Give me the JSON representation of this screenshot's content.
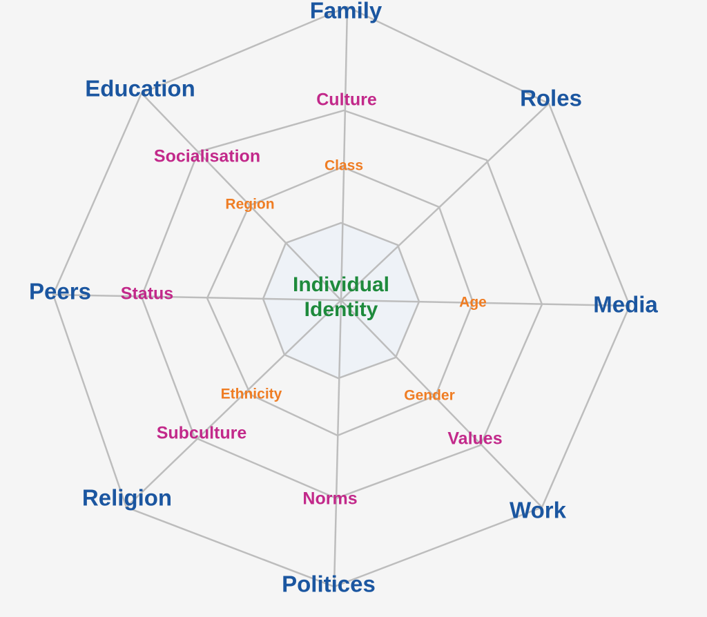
{
  "colors": {
    "background": "#f5f5f5",
    "web_line": "#bdbdbd",
    "core_fill": "#eef2f7",
    "outer_label": "#1b56a0",
    "middle_label": "#c2298a",
    "inner_label": "#ef7d24",
    "center_label": "#1e8a3c"
  },
  "center": {
    "line1": "Individual",
    "line2": "Identity"
  },
  "outer_ring": [
    "Family",
    "Education",
    "Roles",
    "Peers",
    "Media",
    "Religion",
    "Work",
    "Politices"
  ],
  "middle_ring": [
    "Culture",
    "Socialisation",
    "Status",
    "Subculture",
    "Norms",
    "Values"
  ],
  "inner_ring": [
    "Class",
    "Region",
    "Age",
    "Ethnicity",
    "Gender"
  ]
}
